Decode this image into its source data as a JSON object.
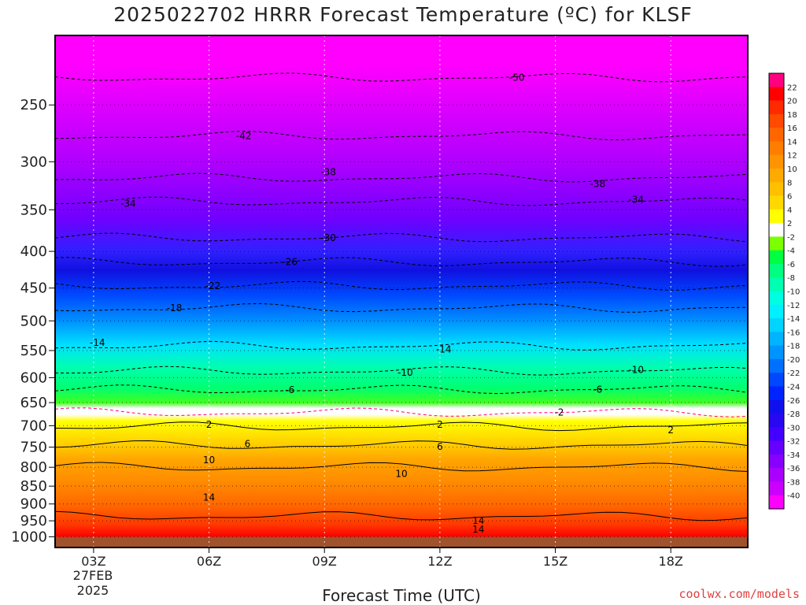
{
  "header": {
    "title": "2025022702 HRRR Forecast Temperature (ºC) for KLSF"
  },
  "footer": {
    "xaxis_title": "Forecast Time (UTC)",
    "credit": "coolwx.com/models"
  },
  "date_label": {
    "line1": "27FEB",
    "line2": "2025"
  },
  "chart_data": {
    "type": "heatmap",
    "title": "2025022702 HRRR Forecast Temperature (ºC) for KLSF",
    "xlabel": "Forecast Time (UTC)",
    "ylabel": "",
    "x_ticks": [
      "03Z",
      "06Z",
      "09Z",
      "12Z",
      "15Z",
      "18Z"
    ],
    "x_hours": [
      3,
      6,
      9,
      12,
      15,
      18
    ],
    "x_range_hours": [
      2,
      20
    ],
    "y_ticks": [
      250,
      300,
      350,
      400,
      450,
      500,
      550,
      600,
      650,
      700,
      750,
      800,
      850,
      900,
      950,
      1000
    ],
    "y_range_hpa": [
      200,
      1035
    ],
    "y_scale": "log-pressure",
    "grid": "dotted",
    "colorbar": {
      "placement": "right",
      "labels": [
        22,
        20,
        18,
        16,
        14,
        12,
        10,
        8,
        6,
        4,
        2,
        -2,
        -4,
        -6,
        -8,
        -10,
        -12,
        -14,
        -16,
        -18,
        -20,
        -22,
        -24,
        -26,
        -28,
        -30,
        -32,
        -34,
        -36,
        -38,
        -40
      ],
      "colors": [
        "#ff0080",
        "#ff0000",
        "#ff2a00",
        "#ff4a00",
        "#ff6600",
        "#ff7e00",
        "#ff9400",
        "#ffaa00",
        "#ffc000",
        "#ffd800",
        "#ffff00",
        "#ffffff",
        "#7cff00",
        "#00ff40",
        "#00ff80",
        "#00ffb0",
        "#00ffe0",
        "#00f0ff",
        "#00d4ff",
        "#00b4ff",
        "#0094ff",
        "#0070ff",
        "#0048ff",
        "#0024ff",
        "#1010ee",
        "#2808f0",
        "#4400ff",
        "#6600ff",
        "#8800ff",
        "#aa00ff",
        "#cc00ff",
        "#ff00ff"
      ]
    },
    "isotherms": [
      {
        "label": "-50",
        "x_hour": 14.0,
        "level_hpa": 229,
        "style": "dashed"
      },
      {
        "label": "-42",
        "x_hour": 6.9,
        "level_hpa": 276,
        "style": "dashed"
      },
      {
        "label": "-38",
        "x_hour": 9.1,
        "level_hpa": 310,
        "style": "dashed"
      },
      {
        "label": "-38",
        "x_hour": 16.1,
        "level_hpa": 322,
        "style": "dashed"
      },
      {
        "label": "-34",
        "x_hour": 3.9,
        "level_hpa": 343,
        "style": "dashed"
      },
      {
        "label": "-34",
        "x_hour": 17.1,
        "level_hpa": 339,
        "style": "dashed"
      },
      {
        "label": "-30",
        "x_hour": 9.1,
        "level_hpa": 383,
        "style": "dashed"
      },
      {
        "label": "-26",
        "x_hour": 8.1,
        "level_hpa": 414,
        "style": "dashed"
      },
      {
        "label": "-22",
        "x_hour": 6.1,
        "level_hpa": 447,
        "style": "dashed"
      },
      {
        "label": "-18",
        "x_hour": 5.1,
        "level_hpa": 480,
        "style": "dashed"
      },
      {
        "label": "-14",
        "x_hour": 3.1,
        "level_hpa": 536,
        "style": "dashed"
      },
      {
        "label": "-14",
        "x_hour": 12.1,
        "level_hpa": 548,
        "style": "dashed"
      },
      {
        "label": "-10",
        "x_hour": 11.1,
        "level_hpa": 590,
        "style": "dashed"
      },
      {
        "label": "-10",
        "x_hour": 17.1,
        "level_hpa": 585,
        "style": "dashed"
      },
      {
        "label": "-6",
        "x_hour": 8.1,
        "level_hpa": 624,
        "style": "dashed"
      },
      {
        "label": "-6",
        "x_hour": 16.1,
        "level_hpa": 623,
        "style": "dashed"
      },
      {
        "label": "-2",
        "x_hour": 15.1,
        "level_hpa": 671,
        "style": "dashed"
      },
      {
        "label": "2",
        "x_hour": 6.0,
        "level_hpa": 698,
        "style": "solid"
      },
      {
        "label": "2",
        "x_hour": 12.0,
        "level_hpa": 698,
        "style": "solid"
      },
      {
        "label": "2",
        "x_hour": 18.0,
        "level_hpa": 710,
        "style": "solid"
      },
      {
        "label": "6",
        "x_hour": 7.0,
        "level_hpa": 742,
        "style": "solid"
      },
      {
        "label": "6",
        "x_hour": 12.0,
        "level_hpa": 749,
        "style": "solid"
      },
      {
        "label": "10",
        "x_hour": 6.0,
        "level_hpa": 782,
        "style": "solid"
      },
      {
        "label": "10",
        "x_hour": 11.0,
        "level_hpa": 817,
        "style": "solid"
      },
      {
        "label": "14",
        "x_hour": 6.0,
        "level_hpa": 882,
        "style": "solid"
      },
      {
        "label": "14",
        "x_hour": 13.0,
        "level_hpa": 950,
        "style": "solid"
      },
      {
        "label": "14",
        "x_hour": 13.0,
        "level_hpa": 976,
        "style": "solid"
      }
    ]
  }
}
